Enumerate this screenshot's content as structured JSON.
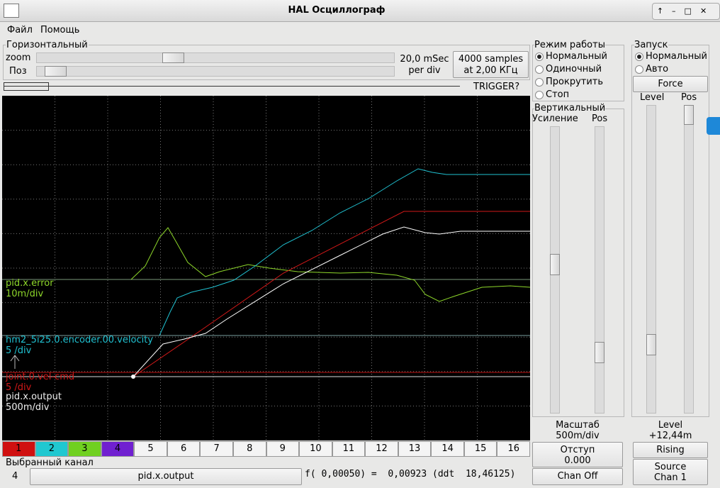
{
  "window": {
    "title": "HAL Осциллограф"
  },
  "menu": [
    "Файл",
    "Помощь"
  ],
  "horizontal": {
    "title": "Горизонтальный",
    "zoom": "zoom",
    "pos": "Поз",
    "rate_line1": "20,0 mSec",
    "rate_line2": "per div",
    "samples_line1": "4000 samples",
    "samples_line2": "at 2,00 КГц",
    "trigger": "TRIGGER?"
  },
  "channel_labels": [
    {
      "name": "pid.x.error",
      "scale": "10m/div"
    },
    {
      "name": "hm2_5i25.0.encoder.00.velocity",
      "scale": "5 /div"
    },
    {
      "name": "joint.0.vel-cmd",
      "scale": "5 /div"
    },
    {
      "name": "pid.x.output",
      "scale": "500m/div"
    }
  ],
  "channel_buttons": [
    "1",
    "2",
    "3",
    "4",
    "5",
    "6",
    "7",
    "8",
    "9",
    "10",
    "11",
    "12",
    "13",
    "14",
    "15",
    "16"
  ],
  "selected": {
    "title": "Выбранный канал",
    "number": "4",
    "name": "pid.x.output",
    "readout": "f( 0,00050) =  0,00923 (ddt  18,46125)"
  },
  "mode": {
    "title": "Режим работы",
    "options": [
      "Нормальный",
      "Одиночный",
      "Прокрутить",
      "Стоп"
    ]
  },
  "vertical": {
    "title": "Вертикальный",
    "gain": "Усиление",
    "pos": "Pos",
    "scale_title": "Масштаб",
    "scale": "500m/div",
    "offset_line1": "Отступ",
    "offset_line2": "0.000",
    "chan_off": "Chan Off"
  },
  "trigger": {
    "title": "Запуск",
    "options": [
      "Нормальный",
      "Авто"
    ],
    "force": "Force",
    "level": "Level",
    "pos": "Pos",
    "level_title": "Level",
    "level_value": "+12,44m",
    "edge": "Rising",
    "source_line1": "Source",
    "source_line2": "Chan  1"
  }
}
